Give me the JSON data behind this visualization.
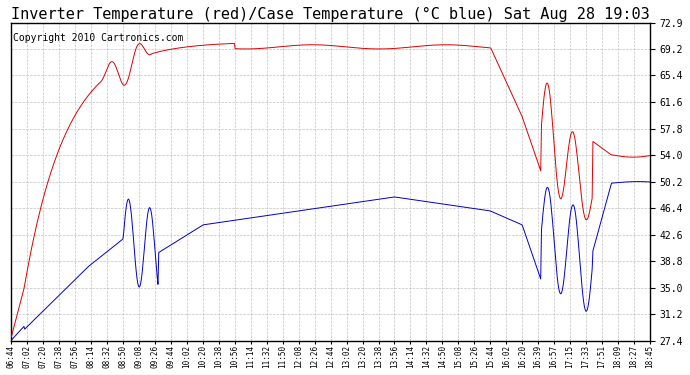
{
  "title": "Inverter Temperature (red)/Case Temperature (°C blue) Sat Aug 28 19:03",
  "copyright": "Copyright 2010 Cartronics.com",
  "yticks": [
    27.4,
    31.2,
    35.0,
    38.8,
    42.6,
    46.4,
    50.2,
    54.0,
    57.8,
    61.6,
    65.4,
    69.2,
    72.9
  ],
  "ylim": [
    27.4,
    72.9
  ],
  "xtick_labels": [
    "06:44",
    "07:02",
    "07:20",
    "07:38",
    "07:56",
    "08:14",
    "08:32",
    "08:50",
    "09:08",
    "09:26",
    "09:44",
    "10:02",
    "10:20",
    "10:38",
    "10:56",
    "11:14",
    "11:32",
    "11:50",
    "12:08",
    "12:26",
    "12:44",
    "13:02",
    "13:20",
    "13:38",
    "13:56",
    "14:14",
    "14:32",
    "14:50",
    "15:08",
    "15:26",
    "15:44",
    "16:02",
    "16:20",
    "16:39",
    "16:57",
    "17:15",
    "17:33",
    "17:51",
    "18:09",
    "18:27",
    "18:45"
  ],
  "background_color": "#ffffff",
  "plot_bg_color": "#ffffff",
  "grid_color": "#bbbbbb",
  "red_color": "#dd0000",
  "blue_color": "#0000cc",
  "title_fontsize": 11,
  "copyright_fontsize": 7,
  "figsize": [
    6.9,
    3.75
  ],
  "dpi": 100
}
